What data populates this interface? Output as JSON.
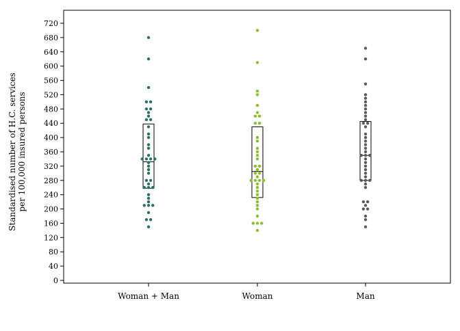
{
  "chart_data": {
    "type": "scatter",
    "subtype": "strip plot with box (median and quartiles)",
    "title": "",
    "xlabel": "",
    "ylabel_lines": [
      "Standardised number of H.C. services",
      "per 100,000 insured persons"
    ],
    "ylim": [
      0,
      760
    ],
    "yticks": [
      0,
      40,
      80,
      120,
      160,
      200,
      240,
      280,
      320,
      360,
      400,
      440,
      480,
      520,
      560,
      600,
      640,
      680,
      720
    ],
    "grid": false,
    "legend": "none",
    "categories": [
      "Woman + Man",
      "Woman",
      "Man"
    ],
    "series": [
      {
        "category": "Woman + Man",
        "color": "#2a7068",
        "box": {
          "q1": 258,
          "median": 332,
          "q3": 438
        },
        "values": [
          680,
          620,
          540,
          500,
          500,
          480,
          480,
          470,
          460,
          450,
          450,
          430,
          410,
          400,
          380,
          370,
          350,
          340,
          340,
          340,
          340,
          330,
          320,
          310,
          300,
          280,
          280,
          270,
          260,
          260,
          260,
          240,
          230,
          220,
          210,
          210,
          210,
          190,
          170,
          170,
          150
        ]
      },
      {
        "category": "Woman",
        "color": "#8cbf2a",
        "box": {
          "q1": 232,
          "median": 305,
          "q3": 430
        },
        "values": [
          700,
          610,
          530,
          520,
          490,
          470,
          460,
          460,
          440,
          440,
          400,
          390,
          370,
          360,
          350,
          340,
          320,
          320,
          310,
          300,
          300,
          290,
          280,
          280,
          280,
          280,
          270,
          260,
          250,
          240,
          230,
          220,
          210,
          200,
          180,
          160,
          160,
          160,
          140
        ]
      },
      {
        "category": "Man",
        "color": "#5a5a5a",
        "box": {
          "q1": 280,
          "median": 350,
          "q3": 445
        },
        "values": [
          650,
          620,
          550,
          520,
          510,
          500,
          490,
          480,
          470,
          460,
          450,
          440,
          440,
          430,
          410,
          400,
          390,
          380,
          370,
          360,
          350,
          350,
          350,
          340,
          330,
          320,
          310,
          300,
          290,
          280,
          280,
          280,
          270,
          260,
          220,
          220,
          210,
          200,
          200,
          180,
          170,
          150
        ]
      }
    ]
  }
}
